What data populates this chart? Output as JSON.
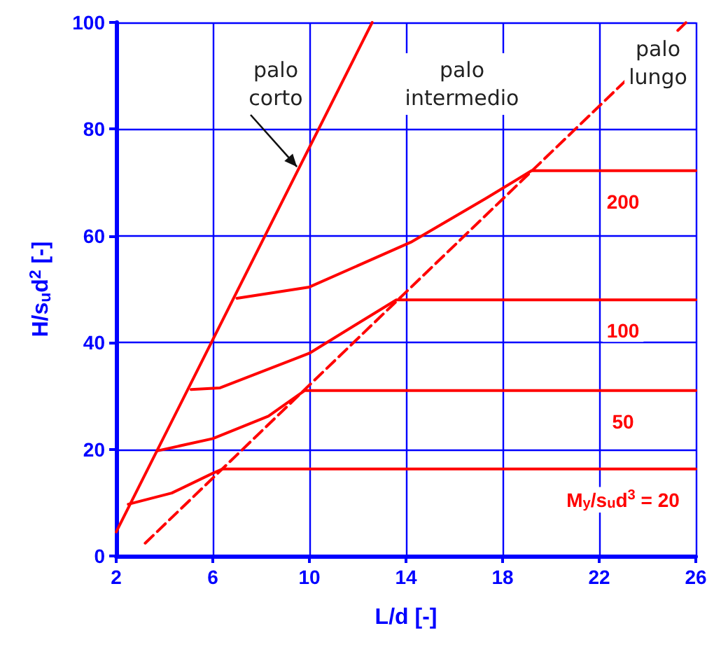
{
  "chart_data": {
    "type": "line",
    "xlabel": "L/d [-]",
    "ylabel": "H/s$_{u}$d$^{2}$ [-]",
    "xlim": [
      2,
      26
    ],
    "xticks": [
      2,
      6,
      10,
      14,
      18,
      22,
      26
    ],
    "ylim": [
      0,
      100
    ],
    "yticks": [
      0,
      20,
      40,
      60,
      80,
      100
    ],
    "grid": true,
    "marker": "none",
    "annotations": [
      {
        "text": "palo corto",
        "x": 9.6,
        "y": 73.2
      },
      "palo intermedio",
      "palo lungo"
    ],
    "series": [
      {
        "color": "#ff0000",
        "line_style": "solid",
        "x": [
          2,
          12.6
        ],
        "values": [
          4.5,
          100
        ]
      },
      {
        "color": "#ff0000",
        "line_style": "dashed",
        "x": [
          3.2,
          25.6
        ],
        "values": [
          2.4,
          100
        ]
      },
      {
        "name": "M$_{y}$/s$_{u}$d$^{3}$ = 20",
        "color": "#ff0000",
        "line_style": "solid",
        "x": [
          2.5,
          4.3,
          6,
          6.4,
          26
        ],
        "values": [
          9.7,
          11.8,
          15.5,
          16.3,
          16.3
        ]
      },
      {
        "name": "50",
        "color": "#ff0000",
        "line_style": "solid",
        "x": [
          3.7,
          6,
          8.3,
          9.8,
          26
        ],
        "values": [
          19.7,
          22,
          26.2,
          31,
          31
        ]
      },
      {
        "name": "100",
        "color": "#ff0000",
        "line_style": "solid",
        "x": [
          5.1,
          6.3,
          10,
          13.6,
          26
        ],
        "values": [
          31.2,
          31.5,
          38,
          48,
          48
        ]
      },
      {
        "name": "200",
        "color": "#ff0000",
        "line_style": "solid",
        "x": [
          7,
          10,
          14.2,
          17.3,
          19.2,
          26
        ],
        "values": [
          48.3,
          50.4,
          58.8,
          67,
          72.2,
          72.2
        ]
      }
    ]
  }
}
